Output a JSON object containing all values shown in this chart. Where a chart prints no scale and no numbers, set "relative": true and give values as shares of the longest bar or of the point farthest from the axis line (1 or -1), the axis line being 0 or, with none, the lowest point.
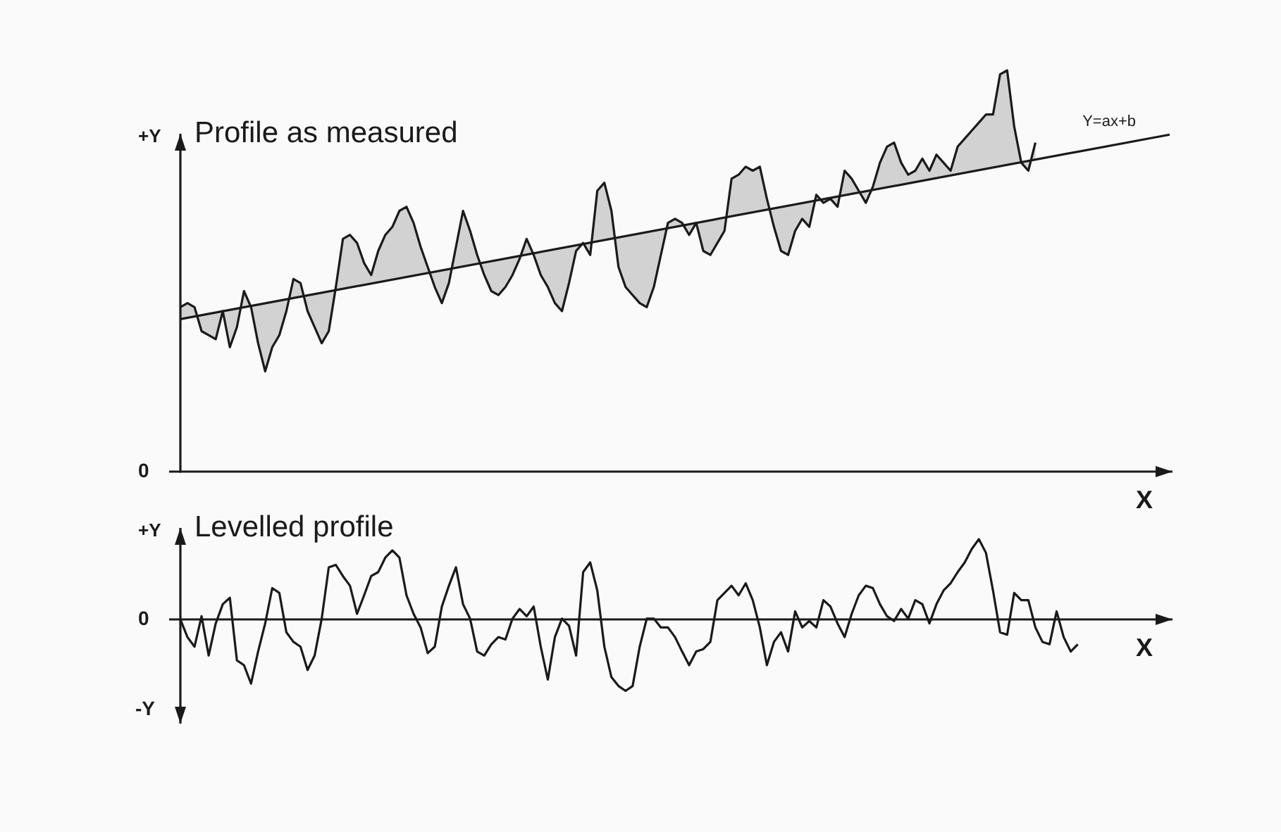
{
  "chart_data": [
    {
      "type": "line",
      "title": "Profile as measured",
      "ylabel": "+Y",
      "xlabel": "X",
      "relative": true,
      "annotations": [
        "0"
      ],
      "categories": [
        null,
        null,
        null,
        null,
        null,
        null,
        null,
        null,
        null,
        null,
        null,
        null,
        null,
        null,
        null,
        null,
        null,
        null,
        null,
        null,
        null,
        null,
        null,
        null,
        null,
        null,
        null,
        null,
        null,
        null,
        null,
        null,
        null,
        null,
        null,
        null,
        null,
        null,
        null,
        null,
        null,
        null,
        null,
        null,
        null,
        null,
        null,
        null,
        null,
        null,
        null,
        null,
        null,
        null,
        null,
        null,
        null,
        null,
        null,
        null,
        null,
        null,
        null,
        null,
        null,
        null,
        null,
        null,
        null,
        null,
        null,
        null,
        null,
        null,
        null,
        null,
        null,
        null,
        null,
        null,
        null,
        null,
        null,
        null,
        null,
        null,
        null,
        null,
        null,
        null,
        null,
        null,
        null,
        null,
        null,
        null,
        null,
        null,
        null,
        null,
        null,
        null,
        null,
        null,
        null,
        null,
        null,
        null,
        null,
        null,
        null,
        null,
        null,
        null,
        null,
        null,
        null,
        null,
        null,
        null,
        null,
        null,
        null,
        null,
        null,
        null,
        null,
        null,
        null,
        null,
        null,
        null,
        null,
        null,
        null,
        null,
        null,
        null,
        null,
        null,
        null
      ],
      "series": [
        {
          "color": "#1a1a1a",
          "values": [
            0.41,
            0.42,
            0.41,
            0.35,
            0.34,
            0.33,
            0.4,
            0.31,
            0.36,
            0.45,
            0.41,
            0.32,
            0.25,
            0.31,
            0.34,
            0.4,
            0.48,
            0.47,
            0.4,
            0.36,
            0.32,
            0.35,
            0.46,
            0.58,
            0.59,
            0.57,
            0.52,
            0.49,
            0.55,
            0.59,
            0.61,
            0.65,
            0.66,
            0.62,
            0.56,
            0.51,
            0.46,
            0.42,
            0.47,
            0.56,
            0.65,
            0.6,
            0.54,
            0.49,
            0.45,
            0.44,
            0.46,
            0.49,
            0.53,
            0.58,
            0.54,
            0.49,
            0.46,
            0.42,
            0.4,
            0.47,
            0.55,
            0.57,
            0.54,
            0.7,
            0.72,
            0.65,
            0.51,
            0.46,
            0.44,
            0.42,
            0.41,
            0.46,
            0.54,
            0.62,
            0.63,
            0.62,
            0.59,
            0.62,
            0.55,
            0.54,
            0.57,
            0.6,
            0.73,
            0.74,
            0.76,
            0.75,
            0.76,
            0.68,
            0.61,
            0.55,
            0.54,
            0.6,
            0.63,
            0.61,
            0.69,
            0.67,
            0.68,
            0.66,
            0.75,
            0.73,
            0.7,
            0.67,
            0.71,
            0.77,
            0.81,
            0.82,
            0.77,
            0.74,
            0.75,
            0.78,
            0.75,
            0.79,
            0.77,
            0.75,
            0.81,
            0.83,
            0.85,
            0.87,
            0.89,
            0.89,
            0.99,
            1,
            0.86,
            0.77,
            0.75,
            0.82,
            null,
            null,
            null,
            null,
            null,
            null,
            null,
            null,
            null,
            null,
            null,
            null,
            null,
            null,
            null,
            null,
            null,
            null,
            null
          ]
        },
        {
          "name": "Y=ax+b",
          "color": "#1a1a1a",
          "values": [
            0.38,
            null,
            null,
            null,
            null,
            null,
            null,
            null,
            null,
            null,
            null,
            null,
            null,
            null,
            null,
            null,
            null,
            null,
            null,
            null,
            null,
            null,
            null,
            null,
            null,
            null,
            null,
            null,
            null,
            null,
            null,
            null,
            null,
            null,
            null,
            null,
            null,
            null,
            null,
            null,
            null,
            null,
            null,
            null,
            null,
            null,
            null,
            null,
            null,
            null,
            null,
            null,
            null,
            null,
            null,
            null,
            null,
            null,
            null,
            null,
            null,
            null,
            null,
            null,
            null,
            null,
            null,
            null,
            null,
            null,
            null,
            null,
            null,
            null,
            null,
            null,
            null,
            null,
            null,
            null,
            null,
            null,
            null,
            null,
            null,
            null,
            null,
            null,
            null,
            null,
            null,
            null,
            null,
            null,
            null,
            null,
            null,
            null,
            null,
            null,
            null,
            null,
            null,
            null,
            null,
            null,
            null,
            null,
            null,
            null,
            null,
            null,
            null,
            null,
            null,
            null,
            null,
            null,
            null,
            null,
            null,
            null,
            null,
            null,
            null,
            null,
            null,
            null,
            null,
            null,
            null,
            null,
            null,
            null,
            null,
            null,
            null,
            null,
            null,
            null,
            0.84
          ]
        }
      ]
    },
    {
      "type": "line",
      "title": "Levelled profile",
      "ylabel": "+Y",
      "xlabel": "X",
      "relative": true,
      "annotations": [
        "0",
        "-Y"
      ],
      "categories": [
        null,
        null,
        null,
        null,
        null,
        null,
        null,
        null,
        null,
        null,
        null,
        null,
        null,
        null,
        null,
        null,
        null,
        null,
        null,
        null,
        null,
        null,
        null,
        null,
        null,
        null,
        null,
        null,
        null,
        null,
        null,
        null,
        null,
        null,
        null,
        null,
        null,
        null,
        null,
        null,
        null,
        null,
        null,
        null,
        null,
        null,
        null,
        null,
        null,
        null,
        null,
        null,
        null,
        null,
        null,
        null,
        null,
        null,
        null,
        null,
        null,
        null,
        null,
        null,
        null,
        null,
        null,
        null,
        null,
        null,
        null,
        null,
        null,
        null,
        null,
        null,
        null,
        null,
        null,
        null,
        null,
        null,
        null,
        null,
        null,
        null,
        null,
        null,
        null,
        null,
        null,
        null,
        null,
        null,
        null,
        null,
        null,
        null,
        null,
        null,
        null,
        null,
        null,
        null,
        null,
        null,
        null,
        null,
        null,
        null,
        null,
        null,
        null,
        null,
        null,
        null,
        null,
        null,
        null,
        null,
        null,
        null,
        null,
        null,
        null,
        null,
        null,
        null,
        null,
        null,
        null,
        null,
        null,
        null,
        null,
        null,
        null,
        null,
        null,
        null,
        null
      ],
      "series": [
        {
          "color": "#1a1a1a",
          "values": [
            0,
            -0.22,
            -0.34,
            0.04,
            -0.45,
            -0.05,
            0.19,
            0.27,
            -0.51,
            -0.57,
            -0.8,
            -0.4,
            -0.05,
            0.39,
            0.33,
            -0.16,
            -0.28,
            -0.34,
            -0.63,
            -0.45,
            0.01,
            0.65,
            0.68,
            0.54,
            0.42,
            0.07,
            0.3,
            0.54,
            0.59,
            0.77,
            0.86,
            0.77,
            0.3,
            0.07,
            -0.1,
            -0.42,
            -0.34,
            0.16,
            0.42,
            0.65,
            0.19,
            0.01,
            -0.4,
            -0.45,
            -0.31,
            -0.22,
            -0.25,
            0.01,
            0.13,
            0.04,
            0.16,
            -0.34,
            -0.75,
            -0.22,
            0.01,
            -0.08,
            -0.45,
            0.59,
            0.71,
            0.36,
            -0.34,
            -0.72,
            -0.83,
            -0.89,
            -0.83,
            -0.34,
            0.01,
            0.01,
            -0.1,
            -0.1,
            -0.22,
            -0.4,
            -0.57,
            -0.4,
            -0.37,
            -0.28,
            0.24,
            0.33,
            0.42,
            0.3,
            0.45,
            0.24,
            -0.1,
            -0.57,
            -0.28,
            -0.16,
            -0.4,
            0.1,
            -0.1,
            -0.02,
            -0.1,
            0.24,
            0.16,
            -0.05,
            -0.22,
            0.07,
            0.3,
            0.42,
            0.39,
            0.19,
            0.04,
            -0.02,
            0.13,
            0.01,
            0.24,
            0.19,
            -0.05,
            0.19,
            0.36,
            0.45,
            0.59,
            0.71,
            0.88,
            1,
            0.83,
            0.36,
            -0.16,
            -0.19,
            0.33,
            0.24,
            0.24,
            -0.1,
            -0.28,
            -0.31,
            0.1,
            -0.22,
            -0.4,
            -0.31,
            null,
            null,
            null,
            null,
            null,
            null,
            null,
            null,
            null,
            null,
            null,
            null,
            null
          ]
        }
      ]
    }
  ]
}
